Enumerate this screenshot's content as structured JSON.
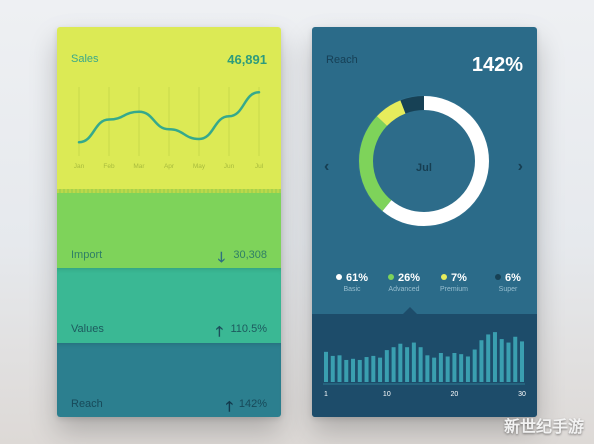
{
  "sales_card": {
    "label": "Sales",
    "value": "46,891",
    "months": [
      "Jan",
      "Feb",
      "Mar",
      "Apr",
      "May",
      "Jun",
      "Jul"
    ],
    "trend": [
      0.15,
      0.5,
      0.62,
      0.35,
      0.2,
      0.55,
      0.92
    ],
    "colors": {
      "panel": "#dcea55",
      "line": "#35a98c"
    }
  },
  "metrics": [
    {
      "label": "Import",
      "value": "30,308",
      "direction": "down",
      "arrow": "🡓"
    },
    {
      "label": "Values",
      "value": "110.5%",
      "direction": "up",
      "arrow": "🡑"
    },
    {
      "label": "Reach",
      "value": "142%",
      "direction": "up",
      "arrow": "🡑"
    }
  ],
  "reach_card": {
    "title": "Reach",
    "value": "142%",
    "month": "Jul",
    "prev_icon": "‹",
    "next_icon": "›",
    "segments": [
      {
        "name": "Basic",
        "percent": 61,
        "label": "61%",
        "color": "#ffffff"
      },
      {
        "name": "Advanced",
        "percent": 26,
        "label": "26%",
        "color": "#7ed35a"
      },
      {
        "name": "Premium",
        "percent": 7,
        "label": "7%",
        "color": "#e6ec5c"
      },
      {
        "name": "Super",
        "percent": 6,
        "label": "6%",
        "color": "#174155"
      }
    ],
    "bar_axis_labels": [
      "1",
      "10",
      "20",
      "30"
    ],
    "bars": [
      0.52,
      0.45,
      0.46,
      0.38,
      0.4,
      0.38,
      0.43,
      0.45,
      0.42,
      0.55,
      0.6,
      0.66,
      0.6,
      0.68,
      0.6,
      0.46,
      0.42,
      0.5,
      0.44,
      0.5,
      0.48,
      0.44,
      0.56,
      0.72,
      0.82,
      0.86,
      0.74,
      0.68,
      0.78,
      0.7
    ],
    "colors": {
      "panel": "#1d4c6a",
      "bar": "#3a9fb0",
      "ring": "#ffffff"
    }
  },
  "watermark": "新世纪手游"
}
